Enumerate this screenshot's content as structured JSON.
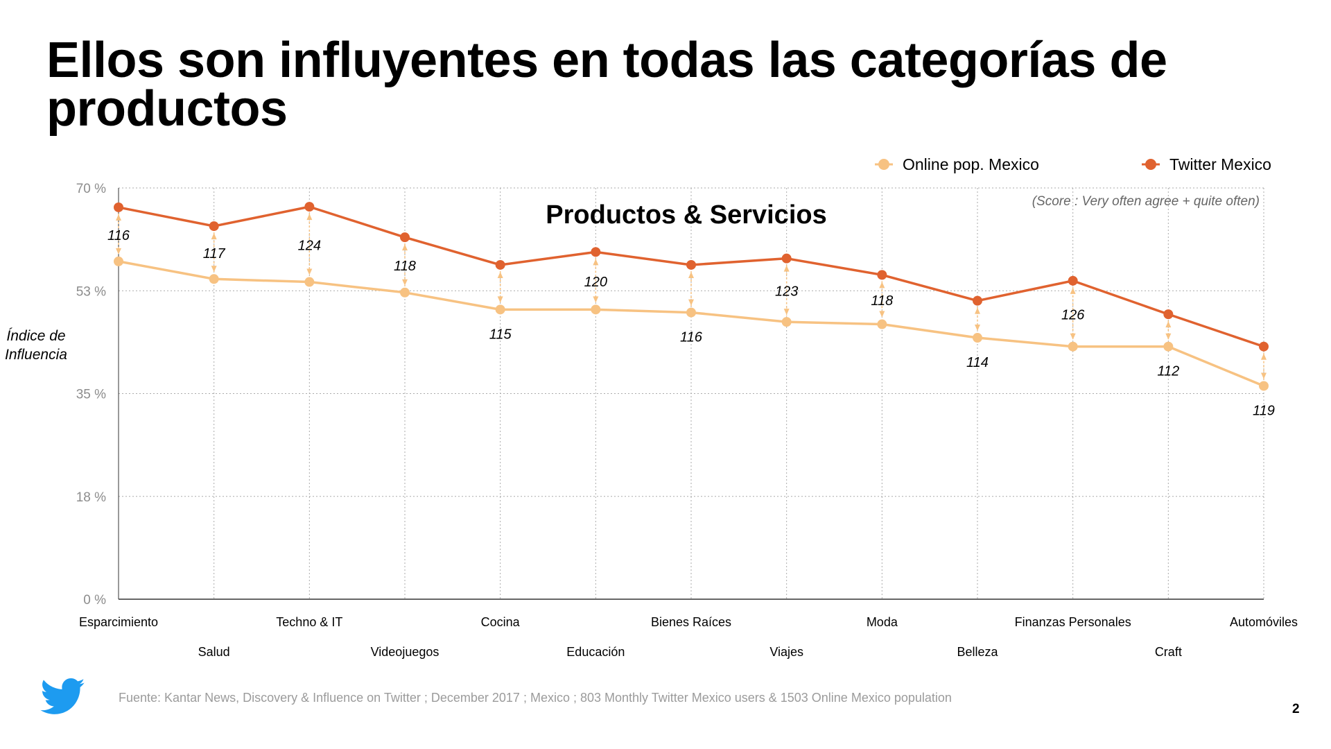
{
  "slide": {
    "title": "Ellos son influyentes en todas las categorías de productos",
    "source": "Fuente: Kantar News, Discovery & Influence on Twitter ; December 2017 ; Mexico ; 803 Monthly Twitter Mexico users & 1503 Online Mexico population",
    "page_number": "2",
    "logo_icon": "twitter-bird-icon"
  },
  "chart_data": {
    "type": "line",
    "title": "Productos & Servicios",
    "subtitle": "(Score : Very often agree + quite often)",
    "ylabel": "Índice de Influencia",
    "xlabel": "",
    "ylim": [
      0,
      70
    ],
    "yticks": [
      0,
      17.5,
      35,
      52.5,
      70
    ],
    "ytick_labels": [
      "0 %",
      "18 %",
      "35 %",
      "53 %",
      "70 %"
    ],
    "grid": true,
    "legend_position": "top-right",
    "categories": [
      "Esparcimiento",
      "Salud",
      "Techno & IT",
      "Videojuegos",
      "Cocina",
      "Educación",
      "Bienes Raíces",
      "Viajes",
      "Moda",
      "Belleza",
      "Finanzas Personales",
      "Craft",
      "Automóviles"
    ],
    "series": [
      {
        "name": "Online pop. Mexico",
        "color": "#f7c282",
        "values": [
          57.5,
          54.5,
          54.0,
          52.2,
          49.3,
          49.3,
          48.8,
          47.2,
          46.8,
          44.5,
          43.0,
          43.0,
          36.3
        ]
      },
      {
        "name": "Twitter Mexico",
        "color": "#e0622f",
        "values": [
          66.7,
          63.5,
          66.8,
          61.6,
          56.9,
          59.1,
          56.9,
          58.0,
          55.2,
          50.8,
          54.2,
          48.5,
          43.0
        ]
      }
    ],
    "index_labels": [
      "116",
      "117",
      "124",
      "118",
      "115",
      "120",
      "116",
      "123",
      "118",
      "114",
      "126",
      "112",
      "119"
    ],
    "colors": {
      "online": "#f7c282",
      "twitter": "#e0622f",
      "grid": "#aaaaaa",
      "tick_text": "#8c8c8c",
      "axis": "#333333"
    }
  }
}
